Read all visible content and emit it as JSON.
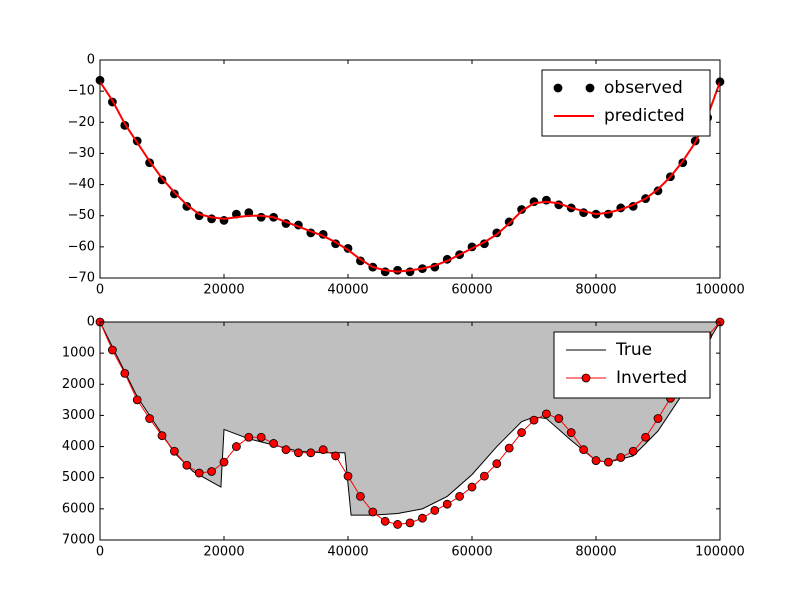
{
  "chart_data": [
    {
      "type": "line",
      "x": [
        0,
        2000,
        4000,
        6000,
        8000,
        10000,
        12000,
        14000,
        16000,
        18000,
        20000,
        22000,
        24000,
        26000,
        28000,
        30000,
        32000,
        34000,
        36000,
        38000,
        40000,
        42000,
        44000,
        46000,
        48000,
        50000,
        52000,
        54000,
        56000,
        58000,
        60000,
        62000,
        64000,
        66000,
        68000,
        70000,
        72000,
        74000,
        76000,
        78000,
        80000,
        82000,
        84000,
        86000,
        88000,
        90000,
        92000,
        94000,
        96000,
        98000,
        100000
      ],
      "series": [
        {
          "name": "observed",
          "color": "#000000",
          "marker": "o",
          "linestyle": null,
          "values": [
            -6.5,
            -13.5,
            -21,
            -26,
            -33,
            -38.5,
            -43,
            -47,
            -50,
            -51,
            -51.5,
            -49.5,
            -49,
            -50.5,
            -50.5,
            -52.5,
            -53,
            -55.5,
            -56,
            -59,
            -60.5,
            -64.5,
            -66.5,
            -68,
            -67.5,
            -68,
            -67,
            -66.5,
            -64,
            -62.5,
            -60,
            -59,
            -55.5,
            -52,
            -48,
            -45.5,
            -45,
            -46.5,
            -47.5,
            -49,
            -49.5,
            -49.5,
            -47.5,
            -47,
            -44.5,
            -42,
            -37.5,
            -33,
            -26,
            -18.5,
            -7
          ]
        },
        {
          "name": "predicted",
          "color": "#ff0000",
          "marker": null,
          "linestyle": "-",
          "values": [
            -7,
            -13,
            -20.5,
            -26.5,
            -32.5,
            -38,
            -42.5,
            -46.5,
            -49.5,
            -50.5,
            -51,
            -50.5,
            -50,
            -50,
            -50.5,
            -52,
            -53.5,
            -55,
            -56.5,
            -58.5,
            -61,
            -64,
            -66.5,
            -67.5,
            -68,
            -67.5,
            -67,
            -66,
            -64.5,
            -62.5,
            -60.5,
            -58.5,
            -56,
            -52.5,
            -48.5,
            -46,
            -45.5,
            -46,
            -47.5,
            -48.5,
            -49.5,
            -49,
            -48,
            -46.5,
            -44.5,
            -41.5,
            -37.5,
            -32.5,
            -26.5,
            -18,
            -7
          ]
        }
      ],
      "xlim": [
        0,
        100000
      ],
      "xticks": [
        0,
        20000,
        40000,
        60000,
        80000,
        100000
      ],
      "ylim": [
        -70,
        0
      ],
      "yticks": [
        0,
        {
          "value": -10,
          "label": "−10"
        },
        {
          "value": -20,
          "label": "−20"
        },
        {
          "value": -30,
          "label": "−30"
        },
        {
          "value": -40,
          "label": "−40"
        },
        {
          "value": -50,
          "label": "−50"
        },
        {
          "value": -60,
          "label": "−60"
        },
        {
          "value": -70,
          "label": "−70"
        }
      ],
      "invert_y": false,
      "legend": "upper right"
    },
    {
      "type": "line",
      "x": [
        0,
        2000,
        4000,
        6000,
        8000,
        10000,
        12000,
        14000,
        16000,
        18000,
        20000,
        22000,
        24000,
        26000,
        28000,
        30000,
        32000,
        34000,
        36000,
        38000,
        40000,
        42000,
        44000,
        46000,
        48000,
        50000,
        52000,
        54000,
        56000,
        58000,
        60000,
        62000,
        64000,
        66000,
        68000,
        70000,
        72000,
        74000,
        76000,
        78000,
        80000,
        82000,
        84000,
        86000,
        88000,
        90000,
        92000,
        94000,
        96000,
        98000,
        100000
      ],
      "series": [
        {
          "name": "True",
          "color": "#000000",
          "marker": null,
          "linestyle": "-",
          "fill": "#bfbfbf",
          "x": [
            0,
            3000,
            6000,
            9000,
            12000,
            15000,
            19500,
            20000,
            24000,
            28000,
            32000,
            36000,
            39500,
            40500,
            44000,
            48000,
            52000,
            56000,
            60000,
            64000,
            68000,
            70000,
            72000,
            76000,
            80000,
            82000,
            86000,
            90000,
            94000,
            97000,
            100000
          ],
          "values": [
            0,
            1200,
            2400,
            3300,
            4200,
            4800,
            5300,
            3450,
            3750,
            3950,
            4150,
            4200,
            4200,
            6200,
            6200,
            6150,
            6000,
            5600,
            4900,
            4000,
            3200,
            3050,
            3100,
            3800,
            4450,
            4500,
            4300,
            3500,
            2300,
            1000,
            0
          ]
        },
        {
          "name": "Inverted",
          "color": "#ff0000",
          "marker": "o",
          "linestyle": "-",
          "values": [
            0,
            900,
            1650,
            2500,
            3100,
            3650,
            4150,
            4600,
            4850,
            4800,
            4500,
            4000,
            3700,
            3700,
            3900,
            4100,
            4200,
            4200,
            4100,
            4300,
            4950,
            5600,
            6100,
            6400,
            6500,
            6450,
            6300,
            6050,
            5850,
            5600,
            5300,
            4950,
            4550,
            4050,
            3550,
            3150,
            2950,
            3100,
            3550,
            4100,
            4450,
            4500,
            4350,
            4150,
            3700,
            3100,
            2450,
            1700,
            900,
            450,
            0
          ]
        }
      ],
      "xlim": [
        0,
        100000
      ],
      "xticks": [
        0,
        20000,
        40000,
        60000,
        80000,
        100000
      ],
      "ylim": [
        0,
        7000
      ],
      "yticks": [
        0,
        1000,
        2000,
        3000,
        4000,
        5000,
        6000,
        7000
      ],
      "invert_y": true,
      "legend": "upper right"
    }
  ]
}
